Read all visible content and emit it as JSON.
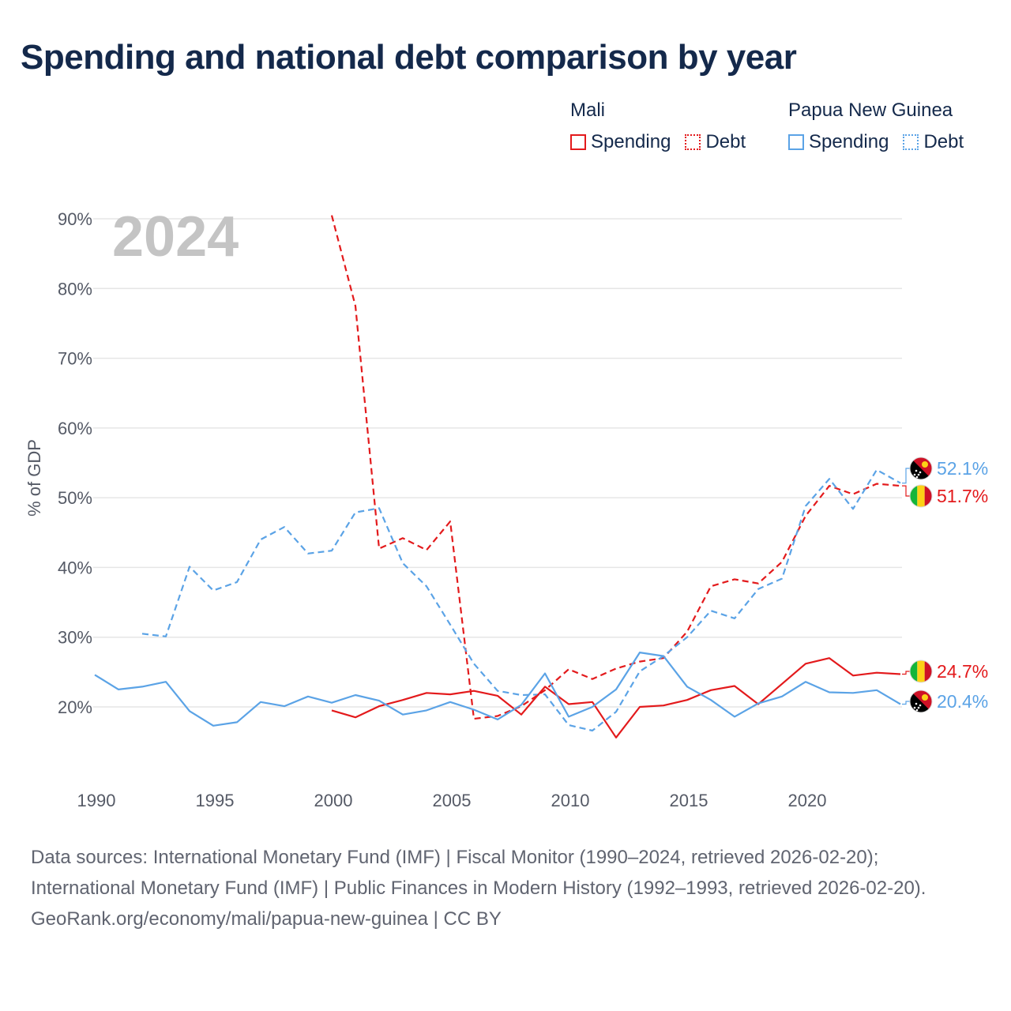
{
  "title": "Spending and national debt comparison by year",
  "legend": {
    "groups": [
      {
        "country": "Mali",
        "color": "#e31a1c",
        "items": [
          {
            "label": "Spending",
            "style": "solid"
          },
          {
            "label": "Debt",
            "style": "dotted"
          }
        ]
      },
      {
        "country": "Papua New Guinea",
        "color": "#5ba3e6",
        "items": [
          {
            "label": "Spending",
            "style": "solid"
          },
          {
            "label": "Debt",
            "style": "dotted"
          }
        ]
      }
    ]
  },
  "chart_data": {
    "type": "line",
    "year_label": "2024",
    "ylabel": "% of GDP",
    "xlim": [
      1990,
      2024
    ],
    "ylim": [
      10,
      90
    ],
    "x_ticks": [
      1990,
      1995,
      2000,
      2005,
      2010,
      2015,
      2020
    ],
    "y_ticks": [
      20,
      30,
      40,
      50,
      60,
      70,
      80,
      90
    ],
    "y_tick_labels": [
      "20%",
      "30%",
      "40%",
      "50%",
      "60%",
      "70%",
      "80%",
      "90%"
    ],
    "series": [
      {
        "name": "Mali Debt",
        "country": "Mali",
        "metric": "Debt",
        "color": "#e31a1c",
        "dash": true,
        "x": [
          2000,
          2001,
          2002,
          2003,
          2004,
          2005,
          2006,
          2007,
          2008,
          2009,
          2010,
          2011,
          2012,
          2013,
          2014,
          2015,
          2016,
          2017,
          2018,
          2019,
          2020,
          2021,
          2022,
          2023,
          2024
        ],
        "values": [
          90.5,
          77.5,
          42.7,
          44.2,
          42.5,
          46.6,
          18.3,
          18.7,
          20.1,
          22.4,
          25.4,
          24.0,
          25.5,
          26.5,
          27.0,
          30.8,
          37.3,
          38.3,
          37.7,
          40.8,
          47.4,
          51.7,
          50.5,
          52.0,
          51.7
        ]
      },
      {
        "name": "Papua New Guinea Debt",
        "country": "Papua New Guinea",
        "metric": "Debt",
        "color": "#5ba3e6",
        "dash": true,
        "x": [
          1992,
          1993,
          1994,
          1995,
          1996,
          1997,
          1998,
          1999,
          2000,
          2001,
          2002,
          2003,
          2004,
          2005,
          2006,
          2007,
          2008,
          2009,
          2010,
          2011,
          2012,
          2013,
          2014,
          2015,
          2016,
          2017,
          2018,
          2019,
          2020,
          2021,
          2022,
          2023,
          2024
        ],
        "values": [
          30.5,
          30.1,
          40.1,
          36.7,
          37.9,
          44.0,
          45.8,
          42.0,
          42.4,
          47.9,
          48.5,
          40.6,
          37.3,
          31.8,
          26.2,
          22.3,
          21.7,
          21.8,
          17.4,
          16.6,
          19.3,
          25.1,
          27.3,
          30.0,
          33.8,
          32.7,
          36.9,
          38.4,
          48.8,
          52.7,
          48.4,
          54.0,
          52.1
        ]
      },
      {
        "name": "Mali Spending",
        "country": "Mali",
        "metric": "Spending",
        "color": "#e31a1c",
        "dash": false,
        "x": [
          2000,
          2001,
          2002,
          2003,
          2004,
          2005,
          2006,
          2007,
          2008,
          2009,
          2010,
          2011,
          2012,
          2013,
          2014,
          2015,
          2016,
          2017,
          2018,
          2019,
          2020,
          2021,
          2022,
          2023,
          2024
        ],
        "values": [
          19.5,
          18.5,
          20.1,
          21.0,
          22.0,
          21.8,
          22.3,
          21.6,
          18.9,
          22.9,
          20.4,
          20.7,
          15.6,
          20.0,
          20.2,
          21.0,
          22.4,
          23.0,
          20.4,
          23.3,
          26.2,
          27.0,
          24.5,
          24.9,
          24.7
        ]
      },
      {
        "name": "Papua New Guinea Spending",
        "country": "Papua New Guinea",
        "metric": "Spending",
        "color": "#5ba3e6",
        "dash": false,
        "x": [
          1990,
          1991,
          1992,
          1993,
          1994,
          1995,
          1996,
          1997,
          1998,
          1999,
          2000,
          2001,
          2002,
          2003,
          2004,
          2005,
          2006,
          2007,
          2008,
          2009,
          2010,
          2011,
          2012,
          2013,
          2014,
          2015,
          2016,
          2017,
          2018,
          2019,
          2020,
          2021,
          2022,
          2023,
          2024
        ],
        "values": [
          24.6,
          22.5,
          22.9,
          23.6,
          19.4,
          17.3,
          17.8,
          20.7,
          20.1,
          21.5,
          20.6,
          21.7,
          20.9,
          18.9,
          19.5,
          20.7,
          19.6,
          18.2,
          20.3,
          24.8,
          18.6,
          20.0,
          22.5,
          27.8,
          27.3,
          22.9,
          21.0,
          18.6,
          20.5,
          21.5,
          23.6,
          22.1,
          22.0,
          22.4,
          20.4
        ]
      }
    ],
    "end_labels": [
      {
        "text": "52.1%",
        "country": "Papua New Guinea",
        "flag": "png",
        "color": "#5ba3e6",
        "value": 52.1
      },
      {
        "text": "51.7%",
        "country": "Mali",
        "flag": "mali",
        "color": "#e31a1c",
        "value": 51.7
      },
      {
        "text": "24.7%",
        "country": "Mali",
        "flag": "mali",
        "color": "#e31a1c",
        "value": 24.7
      },
      {
        "text": "20.4%",
        "country": "Papua New Guinea",
        "flag": "png",
        "color": "#5ba3e6",
        "value": 20.4
      }
    ]
  },
  "sources": {
    "line1": "Data sources: International Monetary Fund (IMF) | Fiscal Monitor (1990–2024, retrieved 2026-02-20); International Monetary Fund (IMF) | Public Finances in Modern History (1992–1993, retrieved 2026-02-20).",
    "line2": "GeoRank.org/economy/mali/papua-new-guinea | CC BY"
  }
}
